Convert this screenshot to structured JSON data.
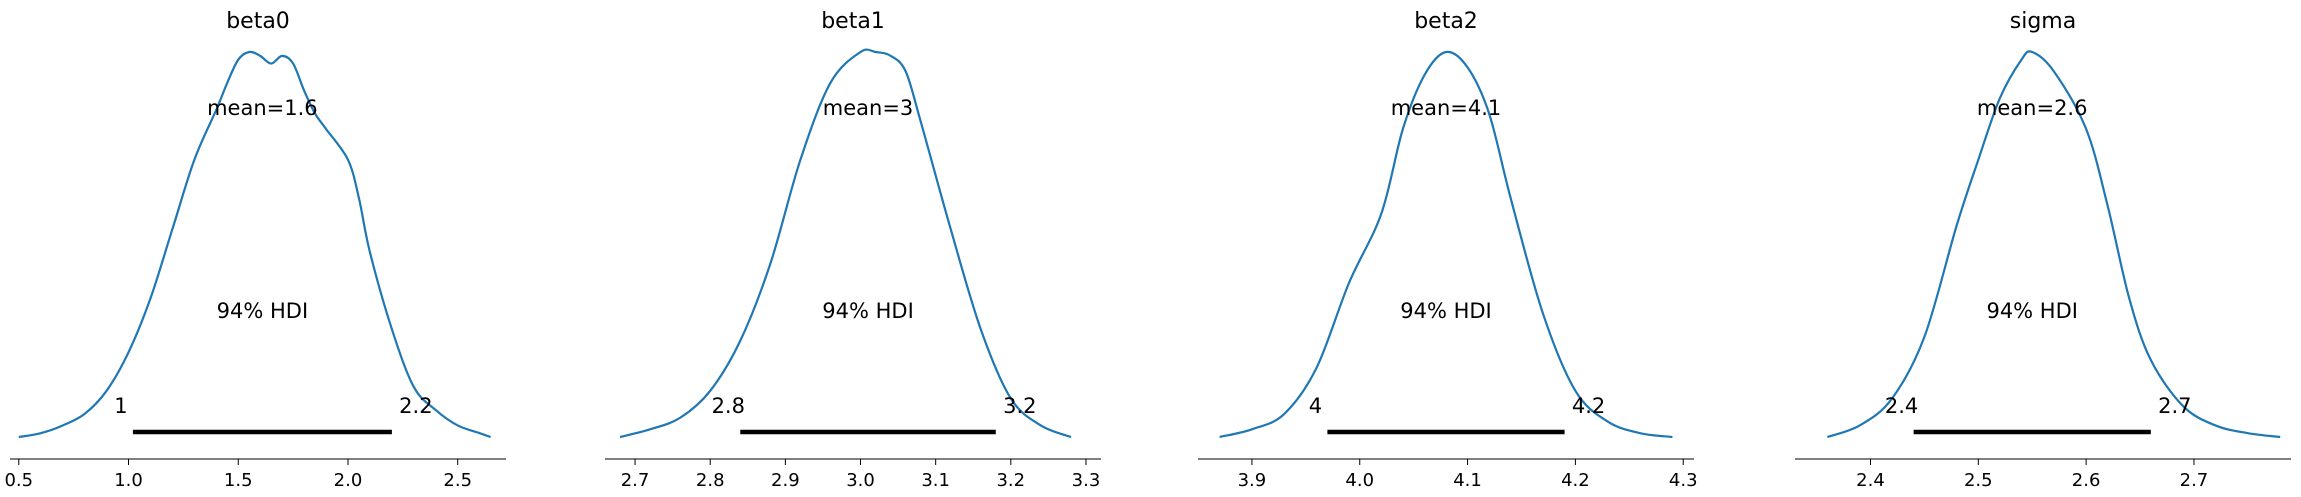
{
  "chart_data": [
    {
      "type": "area",
      "title": "beta0",
      "mean_label": "mean=1.6",
      "hdi_label": "94% HDI",
      "hdi_low_label": "1",
      "hdi_high_label": "2.2",
      "hdi": [
        1.02,
        2.2
      ],
      "xlim": [
        0.46,
        2.72
      ],
      "xticks": [
        0.5,
        1.0,
        1.5,
        2.0,
        2.5
      ],
      "xtick_labels": [
        "0.5",
        "1.0",
        "1.5",
        "2.0",
        "2.5"
      ],
      "color": "#1f77b4",
      "x": [
        0.5,
        0.6,
        0.7,
        0.8,
        0.9,
        1.0,
        1.1,
        1.2,
        1.3,
        1.4,
        1.45,
        1.5,
        1.55,
        1.6,
        1.65,
        1.7,
        1.75,
        1.8,
        1.85,
        1.9,
        2.0,
        2.05,
        2.1,
        2.2,
        2.3,
        2.4,
        2.5,
        2.6,
        2.65
      ],
      "density": [
        0.0,
        0.01,
        0.03,
        0.06,
        0.12,
        0.22,
        0.36,
        0.54,
        0.72,
        0.85,
        0.92,
        0.98,
        1.0,
        0.99,
        0.97,
        0.99,
        0.97,
        0.9,
        0.84,
        0.8,
        0.72,
        0.62,
        0.48,
        0.28,
        0.13,
        0.07,
        0.03,
        0.01,
        0.0
      ]
    },
    {
      "type": "area",
      "title": "beta1",
      "mean_label": "mean=3",
      "hdi_label": "94% HDI",
      "hdi_low_label": "2.8",
      "hdi_high_label": "3.2",
      "hdi": [
        2.84,
        3.18
      ],
      "xlim": [
        2.66,
        3.32
      ],
      "xticks": [
        2.7,
        2.8,
        2.9,
        3.0,
        3.1,
        3.2,
        3.3
      ],
      "xtick_labels": [
        "2.7",
        "2.8",
        "2.9",
        "3.0",
        "3.1",
        "3.2",
        "3.3"
      ],
      "color": "#1f77b4",
      "x": [
        2.68,
        2.72,
        2.76,
        2.8,
        2.84,
        2.88,
        2.92,
        2.96,
        3.0,
        3.02,
        3.04,
        3.06,
        3.08,
        3.12,
        3.16,
        3.2,
        3.24,
        3.28
      ],
      "density": [
        0.0,
        0.02,
        0.05,
        0.12,
        0.25,
        0.45,
        0.72,
        0.92,
        1.0,
        1.0,
        0.99,
        0.95,
        0.82,
        0.54,
        0.28,
        0.1,
        0.03,
        0.0
      ]
    },
    {
      "type": "area",
      "title": "beta2",
      "mean_label": "mean=4.1",
      "hdi_label": "94% HDI",
      "hdi_low_label": "4",
      "hdi_high_label": "4.2",
      "hdi": [
        3.97,
        4.19
      ],
      "xlim": [
        3.85,
        4.31
      ],
      "xticks": [
        3.9,
        4.0,
        4.1,
        4.2,
        4.3
      ],
      "xtick_labels": [
        "3.9",
        "4.0",
        "4.1",
        "4.2",
        "4.3"
      ],
      "color": "#1f77b4",
      "x": [
        3.87,
        3.9,
        3.93,
        3.96,
        3.99,
        4.02,
        4.04,
        4.06,
        4.08,
        4.1,
        4.12,
        4.14,
        4.17,
        4.2,
        4.23,
        4.26,
        4.29
      ],
      "density": [
        0.0,
        0.02,
        0.06,
        0.18,
        0.4,
        0.58,
        0.8,
        0.94,
        1.0,
        0.96,
        0.84,
        0.62,
        0.32,
        0.12,
        0.04,
        0.01,
        0.0
      ]
    },
    {
      "type": "area",
      "title": "sigma",
      "mean_label": "mean=2.6",
      "hdi_label": "94% HDI",
      "hdi_low_label": "2.4",
      "hdi_high_label": "2.7",
      "hdi": [
        2.44,
        2.66
      ],
      "xlim": [
        2.33,
        2.79
      ],
      "xticks": [
        2.4,
        2.5,
        2.6,
        2.7
      ],
      "xtick_labels": [
        "2.4",
        "2.5",
        "2.6",
        "2.7"
      ],
      "color": "#1f77b4",
      "x": [
        2.36,
        2.39,
        2.42,
        2.45,
        2.48,
        2.5,
        2.52,
        2.54,
        2.55,
        2.57,
        2.6,
        2.62,
        2.64,
        2.66,
        2.69,
        2.72,
        2.75,
        2.78
      ],
      "density": [
        0.0,
        0.03,
        0.1,
        0.26,
        0.55,
        0.72,
        0.88,
        0.98,
        1.0,
        0.95,
        0.8,
        0.6,
        0.36,
        0.2,
        0.08,
        0.03,
        0.01,
        0.0
      ]
    }
  ]
}
